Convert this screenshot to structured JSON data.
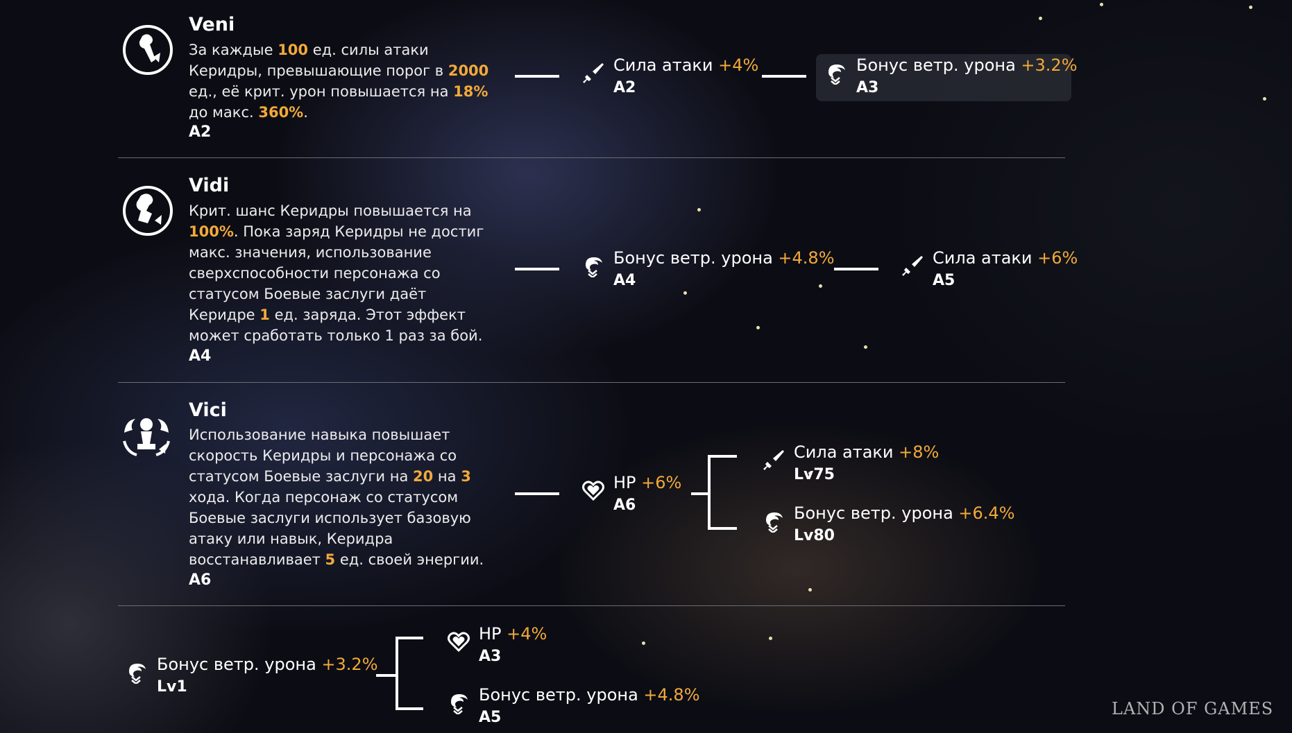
{
  "traces": [
    {
      "title": "Veni",
      "desc_parts": [
        "За каждые ",
        "100",
        " ед. силы атаки Керидры, превышающие порог в ",
        "2000",
        " ед., её крит. урон повышается на ",
        "18%",
        " до макс. ",
        "360%",
        "."
      ],
      "level": "A2",
      "branch": [
        {
          "stat": "Сила атаки",
          "value": "+4%",
          "level": "A2",
          "icon": "sword-icon"
        },
        {
          "stat": "Бонус ветр. урона",
          "value": "+3.2%",
          "level": "A3",
          "icon": "wind-icon"
        }
      ]
    },
    {
      "title": "Vidi",
      "desc_parts": [
        "Крит. шанс Керидры повышается на ",
        "100%",
        ". Пока заряд Керидры не достиг макс. значения, использование сверхспособности персонажа со статусом Боевые заслуги даёт Керидре ",
        "1",
        " ед. заряда. Этот эффект может сработать только 1 раз за бой."
      ],
      "level": "A4",
      "branch": [
        {
          "stat": "Бонус ветр. урона",
          "value": "+4.8%",
          "level": "A4",
          "icon": "wind-icon"
        },
        {
          "stat": "Сила атаки",
          "value": "+6%",
          "level": "A5",
          "icon": "sword-icon"
        }
      ]
    },
    {
      "title": "Vici",
      "desc_parts": [
        "Использование навыка повышает скорость Керидры и персонажа со статусом Боевые заслуги на ",
        "20",
        " на ",
        "3",
        " хода. Когда персонаж со статусом Боевые заслуги использует базовую атаку или навык, Керидра восстанавливает ",
        "5",
        " ед. своей энергии."
      ],
      "level": "A6",
      "branch": [
        {
          "stat": "HP",
          "value": "+6%",
          "level": "A6",
          "icon": "heart-icon"
        },
        {
          "stat": "Сила атаки",
          "value": "+8%",
          "level": "Lv75",
          "icon": "sword-icon"
        },
        {
          "stat": "Бонус ветр. урона",
          "value": "+6.4%",
          "level": "Lv80",
          "icon": "wind-icon"
        }
      ]
    }
  ],
  "base": {
    "root": {
      "stat": "Бонус ветр. урона",
      "value": "+3.2%",
      "level": "Lv1",
      "icon": "wind-icon"
    },
    "top": {
      "stat": "HP",
      "value": "+4%",
      "level": "A3",
      "icon": "heart-icon"
    },
    "bottom": {
      "stat": "Бонус ветр. урона",
      "value": "+4.8%",
      "level": "A5",
      "icon": "wind-icon"
    }
  },
  "watermark": "LAND OF GAMES",
  "colors": {
    "accent": "#f2a93b",
    "text": "#ffffff",
    "divider": "#6b6d74"
  }
}
